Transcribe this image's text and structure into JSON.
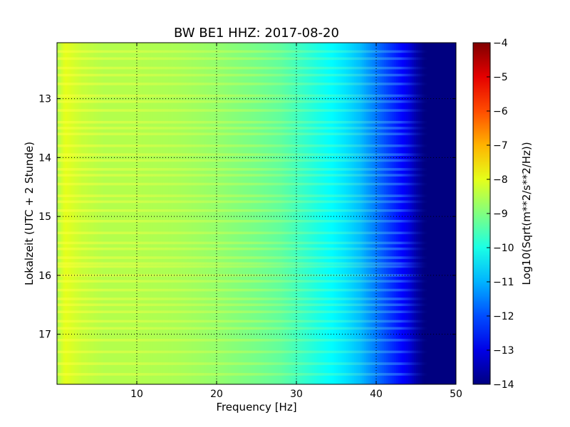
{
  "chart_data": {
    "type": "heatmap",
    "title": "BW BE1 HHZ: 2017-08-20",
    "xlabel": "Frequency [Hz]",
    "ylabel": "Lokalzeit (UTC + 2 Stunde)",
    "colorbar_label": "Log10(Sqrt(m**2/s**2/Hz))",
    "xlim": [
      0,
      50
    ],
    "ylim": [
      12.05,
      17.85
    ],
    "y_inverted": true,
    "x_ticks": [
      10,
      20,
      30,
      40,
      50
    ],
    "x_tick_labels": [
      "10",
      "20",
      "30",
      "40",
      "50"
    ],
    "y_ticks": [
      13,
      14,
      15,
      16,
      17
    ],
    "y_tick_labels": [
      "13",
      "14",
      "15",
      "16",
      "17"
    ],
    "color_range": [
      -14,
      -4
    ],
    "colorbar_ticks": [
      -4,
      -5,
      -6,
      -7,
      -8,
      -9,
      -10,
      -11,
      -12,
      -13,
      -14
    ],
    "colorbar_tick_labels": [
      "−4",
      "−5",
      "−6",
      "−7",
      "−8",
      "−9",
      "−10",
      "−11",
      "−12",
      "−13",
      "−14"
    ],
    "colormap": "jet",
    "grid": true,
    "spectrum_profile": {
      "frequency_hz": [
        0,
        1,
        3,
        6,
        10,
        15,
        20,
        25,
        28,
        30,
        32,
        34,
        36,
        38,
        40,
        42,
        44,
        45,
        46,
        48,
        50
      ],
      "log_amplitude": [
        -8.6,
        -8.0,
        -8.3,
        -8.5,
        -8.5,
        -8.6,
        -8.8,
        -9.1,
        -9.3,
        -9.6,
        -9.9,
        -10.2,
        -10.5,
        -10.9,
        -11.6,
        -12.3,
        -13.0,
        -13.6,
        -14.0,
        -14.0,
        -14.0
      ]
    },
    "bright_bands_hours": [
      12.2,
      12.32,
      12.48,
      12.6,
      12.75,
      12.95,
      13.05,
      13.2,
      13.4,
      13.5,
      13.6,
      13.8,
      13.95,
      14.05,
      14.2,
      14.3,
      14.45,
      14.65,
      14.75,
      14.9,
      15.08,
      15.28,
      15.45,
      15.55,
      15.7,
      15.8,
      15.85,
      16.0,
      16.1,
      16.25,
      16.4,
      16.5,
      16.62,
      16.78,
      16.9,
      17.1,
      17.3,
      17.5,
      17.68
    ]
  }
}
